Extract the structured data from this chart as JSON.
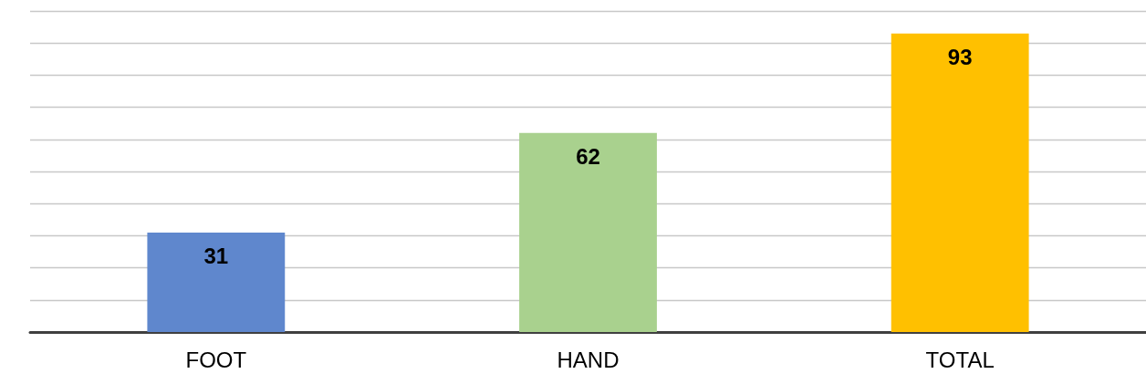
{
  "chart_data": {
    "type": "bar",
    "categories": [
      "FOOT",
      "HAND",
      "TOTAL"
    ],
    "values": [
      31,
      62,
      93
    ],
    "colors": [
      "#5f87cd",
      "#a9d18e",
      "#ffc000"
    ],
    "ylim": [
      0,
      100
    ],
    "yticks": [
      {
        "value": 0,
        "label": null
      },
      {
        "value": 10,
        "label": null
      },
      {
        "value": 20,
        "label": null
      },
      {
        "value": 30,
        "label": null
      },
      {
        "value": 40,
        "label": null
      },
      {
        "value": 50,
        "label": null
      },
      {
        "value": 60,
        "label": null
      },
      {
        "value": 70,
        "label": null
      },
      {
        "value": 80,
        "label": null
      },
      {
        "value": 90,
        "label": null
      },
      {
        "value": 100,
        "label": null
      }
    ],
    "grid": "y",
    "tick_labels": "x",
    "data_labels": true
  }
}
